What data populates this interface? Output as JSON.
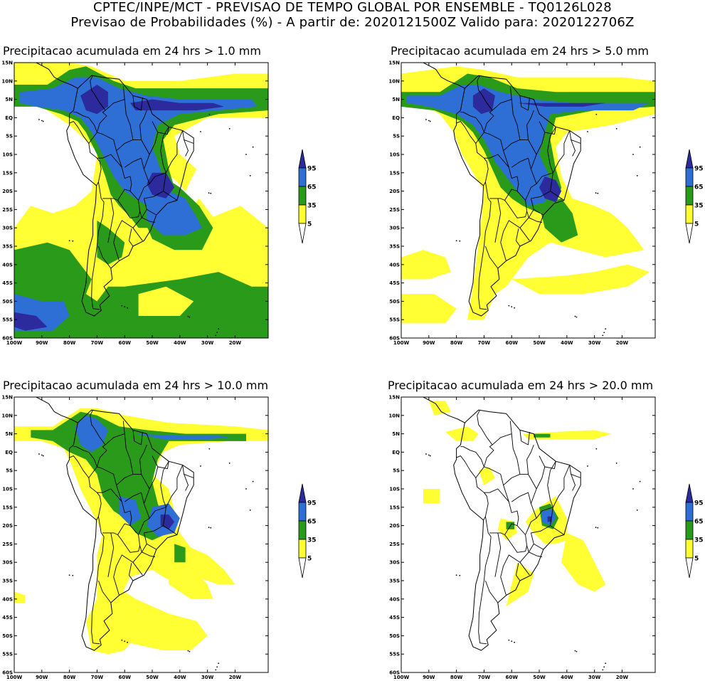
{
  "header": {
    "line1": "CPTEC/INPE/MCT - PREVISAO DE TEMPO GLOBAL POR ENSEMBLE - TQ0126L028",
    "line2": "Previsao de Probabilidades (%) -  A partir de: 2020121500Z  Valido para: 2020122706Z"
  },
  "colors": {
    "c5": "#ffff33",
    "c35": "#2a9a1a",
    "c65": "#2e6fd6",
    "c95": "#2c2a9c",
    "coast": "#000000"
  },
  "axes": {
    "lat_labels": [
      "15N",
      "10N",
      "5N",
      "EQ",
      "5S",
      "10S",
      "15S",
      "20S",
      "25S",
      "30S",
      "35S",
      "40S",
      "45S",
      "50S",
      "55S",
      "60S"
    ],
    "lon_labels": [
      "100W",
      "90W",
      "80W",
      "70W",
      "60W",
      "50W",
      "40W",
      "30W",
      "20W"
    ]
  },
  "colorbar": {
    "levels": [
      "5",
      "35",
      "65",
      "95"
    ]
  },
  "panels": [
    {
      "id": "p1",
      "title": "Precipitacao acumulada em 24 hrs > 1.0 mm"
    },
    {
      "id": "p2",
      "title": "Precipitacao acumulada em 24 hrs > 5.0 mm"
    },
    {
      "id": "p3",
      "title": "Precipitacao acumulada em 24 hrs > 10.0 mm"
    },
    {
      "id": "p4",
      "title": "Precipitacao acumulada em 24 hrs > 20.0 mm"
    }
  ]
}
